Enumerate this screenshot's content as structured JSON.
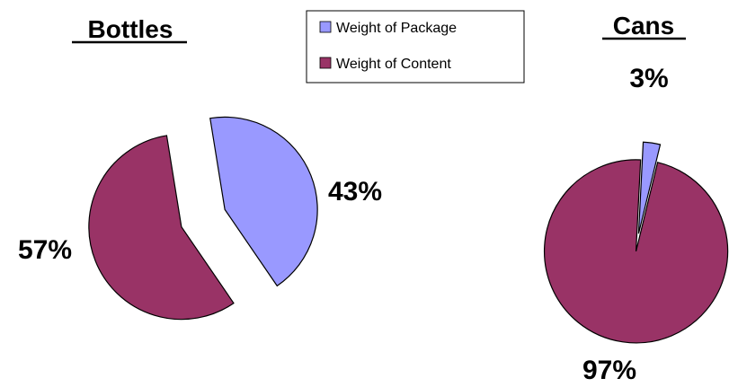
{
  "legend": {
    "items": [
      {
        "label": "Weight of Package",
        "color": "#9999ff"
      },
      {
        "label": "Weight of Content",
        "color": "#993366"
      }
    ]
  },
  "chart_data": [
    {
      "type": "pie",
      "title": "Bottles",
      "categories": [
        "Weight of Package",
        "Weight of Content"
      ],
      "values": [
        43,
        57
      ],
      "labels": [
        "43%",
        "57%"
      ],
      "exploded": true
    },
    {
      "type": "pie",
      "title": "Cans",
      "categories": [
        "Weight of Package",
        "Weight of Content"
      ],
      "values": [
        3,
        97
      ],
      "labels": [
        "3%",
        "97%"
      ],
      "exploded": true
    }
  ]
}
